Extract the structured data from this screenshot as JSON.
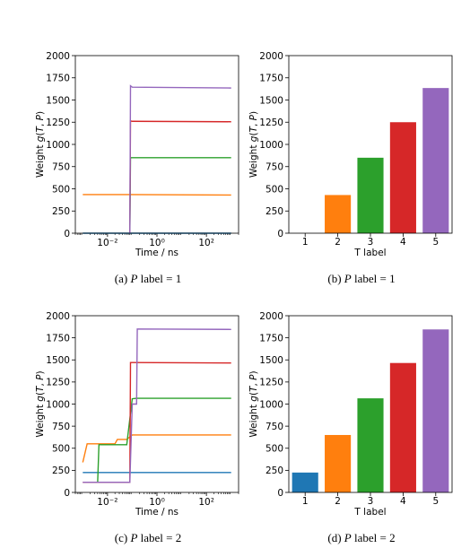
{
  "colors": {
    "blue": "#1f77b4",
    "orange": "#ff7f0e",
    "green": "#2ca02c",
    "red": "#d62728",
    "purple": "#9467bd"
  },
  "chart_data": [
    {
      "type": "line",
      "caption": "(a) P label = 1",
      "xlabel": "Time / ns",
      "ylabel": "Weight g(T, P)",
      "xscale": "log",
      "xlim": [
        0.0005,
        2000
      ],
      "ylim": [
        0,
        2000
      ],
      "xticks": [
        0.01,
        1,
        100
      ],
      "xtick_labels": [
        "10⁻²",
        "10⁰",
        "10²"
      ],
      "yticks": [
        0,
        250,
        500,
        750,
        1000,
        1250,
        1500,
        1750,
        2000
      ],
      "series": [
        {
          "color": "blue",
          "x": [
            0.001,
            0.08,
            0.1,
            1000
          ],
          "y": [
            0,
            0,
            0,
            0
          ]
        },
        {
          "color": "orange",
          "x": [
            0.001,
            0.1,
            1000
          ],
          "y": [
            435,
            435,
            430
          ]
        },
        {
          "color": "green",
          "x": [
            0.08,
            0.085,
            0.1,
            1000
          ],
          "y": [
            0,
            850,
            850,
            850
          ]
        },
        {
          "color": "red",
          "x": [
            0.08,
            0.085,
            0.1,
            1000
          ],
          "y": [
            0,
            1265,
            1260,
            1255
          ]
        },
        {
          "color": "purple",
          "x": [
            0.08,
            0.085,
            0.1,
            1000
          ],
          "y": [
            0,
            1660,
            1645,
            1635
          ]
        }
      ]
    },
    {
      "type": "bar",
      "caption": "(b) P label = 1",
      "xlabel": "T label",
      "ylabel": "Weight g(T, P)",
      "categories": [
        "1",
        "2",
        "3",
        "4",
        "5"
      ],
      "values": [
        0,
        430,
        850,
        1250,
        1635
      ],
      "bar_colors": [
        "blue",
        "orange",
        "green",
        "red",
        "purple"
      ],
      "ylim": [
        0,
        2000
      ],
      "yticks": [
        0,
        250,
        500,
        750,
        1000,
        1250,
        1500,
        1750,
        2000
      ]
    },
    {
      "type": "line",
      "caption": "(c) P label = 2",
      "xlabel": "Time / ns",
      "ylabel": "Weight g(T, P)",
      "xscale": "log",
      "xlim": [
        0.0005,
        2000
      ],
      "ylim": [
        0,
        2000
      ],
      "xticks": [
        0.01,
        1,
        100
      ],
      "xtick_labels": [
        "10⁻²",
        "10⁰",
        "10²"
      ],
      "yticks": [
        0,
        250,
        500,
        750,
        1000,
        1250,
        1500,
        1750,
        2000
      ],
      "series": [
        {
          "color": "blue",
          "x": [
            0.001,
            1000
          ],
          "y": [
            225,
            225
          ]
        },
        {
          "color": "orange",
          "x": [
            0.001,
            0.0015,
            0.02,
            0.025,
            0.06,
            0.1,
            1000
          ],
          "y": [
            340,
            550,
            550,
            600,
            600,
            650,
            650
          ]
        },
        {
          "color": "green",
          "x": [
            0.004,
            0.0045,
            0.06,
            0.1,
            0.15,
            1000
          ],
          "y": [
            120,
            540,
            540,
            1060,
            1065,
            1065
          ]
        },
        {
          "color": "red",
          "x": [
            0.001,
            0.08,
            0.085,
            0.1,
            1000
          ],
          "y": [
            115,
            115,
            1470,
            1470,
            1465
          ]
        },
        {
          "color": "purple",
          "x": [
            0.001,
            0.08,
            0.1,
            0.15,
            0.16,
            1000
          ],
          "y": [
            115,
            115,
            1000,
            1000,
            1850,
            1845
          ]
        }
      ]
    },
    {
      "type": "bar",
      "caption": "(d) P label = 2",
      "xlabel": "T label",
      "ylabel": "Weight g(T, P)",
      "categories": [
        "1",
        "2",
        "3",
        "4",
        "5"
      ],
      "values": [
        225,
        650,
        1065,
        1465,
        1845
      ],
      "bar_colors": [
        "blue",
        "orange",
        "green",
        "red",
        "purple"
      ],
      "ylim": [
        0,
        2000
      ],
      "yticks": [
        0,
        250,
        500,
        750,
        1000,
        1250,
        1500,
        1750,
        2000
      ]
    }
  ]
}
